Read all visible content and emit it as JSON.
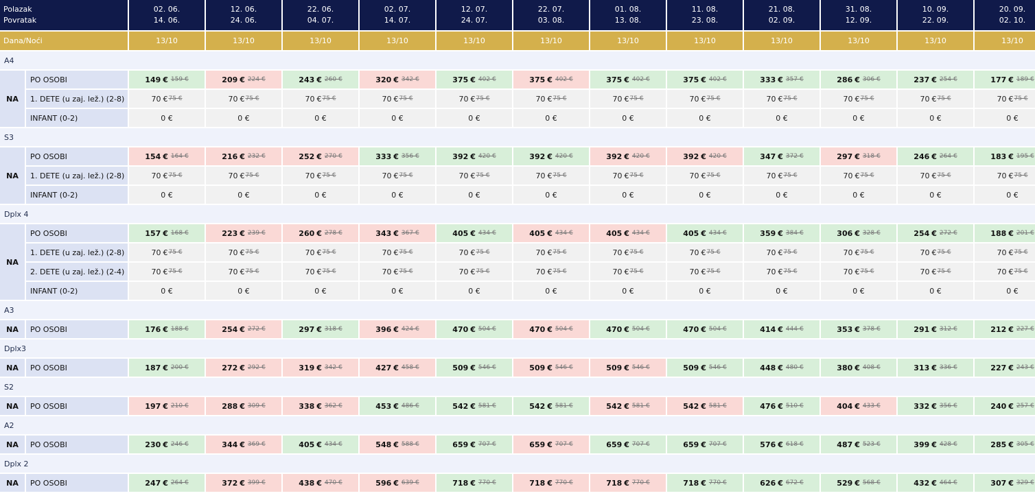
{
  "header": {
    "departure_label": "Polazak",
    "return_label": "Povratak",
    "nights_label": "Dana/Noći",
    "periods": [
      {
        "dep": "02. 06.",
        "ret": "14. 06.",
        "nights": "13/10"
      },
      {
        "dep": "12. 06.",
        "ret": "24. 06.",
        "nights": "13/10"
      },
      {
        "dep": "22. 06.",
        "ret": "04. 07.",
        "nights": "13/10"
      },
      {
        "dep": "02. 07.",
        "ret": "14. 07.",
        "nights": "13/10"
      },
      {
        "dep": "12. 07.",
        "ret": "24. 07.",
        "nights": "13/10"
      },
      {
        "dep": "22. 07.",
        "ret": "03. 08.",
        "nights": "13/10"
      },
      {
        "dep": "01. 08.",
        "ret": "13. 08.",
        "nights": "13/10"
      },
      {
        "dep": "11. 08.",
        "ret": "23. 08.",
        "nights": "13/10"
      },
      {
        "dep": "21. 08.",
        "ret": "02. 09.",
        "nights": "13/10"
      },
      {
        "dep": "31. 08.",
        "ret": "12. 09.",
        "nights": "13/10"
      },
      {
        "dep": "10. 09.",
        "ret": "22. 09.",
        "nights": "13/10"
      },
      {
        "dep": "20. 09.",
        "ret": "02. 10.",
        "nights": "13/10"
      }
    ]
  },
  "colors": {
    "header_bg": "#101a4a",
    "nights_bg": "#d4b04c",
    "price_up": "#d8efd9",
    "price_down": "#fad9d6",
    "label_bg": "#dce2f3"
  },
  "currency": "€",
  "sections": [
    {
      "name": "A4",
      "service": "NA",
      "rows": [
        {
          "label": "PO OSOBI",
          "cells": [
            {
              "p": "149",
              "o": "159 €",
              "c": "green"
            },
            {
              "p": "209",
              "o": "224 €",
              "c": "red"
            },
            {
              "p": "243",
              "o": "260 €",
              "c": "green"
            },
            {
              "p": "320",
              "o": "342 €",
              "c": "red"
            },
            {
              "p": "375",
              "o": "402 €",
              "c": "green"
            },
            {
              "p": "375",
              "o": "402 €",
              "c": "red"
            },
            {
              "p": "375",
              "o": "402 €",
              "c": "green"
            },
            {
              "p": "375",
              "o": "402 €",
              "c": "green"
            },
            {
              "p": "333",
              "o": "357 €",
              "c": "green"
            },
            {
              "p": "286",
              "o": "306 €",
              "c": "green"
            },
            {
              "p": "237",
              "o": "254 €",
              "c": "green"
            },
            {
              "p": "177",
              "o": "189 €",
              "c": "green"
            }
          ]
        },
        {
          "label": "1. DETE (u zaj. lež.) (2-8)",
          "cells": "child"
        },
        {
          "label": "INFANT (0-2)",
          "cells": "infant"
        }
      ]
    },
    {
      "name": "S3",
      "service": "NA",
      "rows": [
        {
          "label": "PO OSOBI",
          "cells": [
            {
              "p": "154",
              "o": "164 €",
              "c": "red"
            },
            {
              "p": "216",
              "o": "232 €",
              "c": "red"
            },
            {
              "p": "252",
              "o": "270 €",
              "c": "red"
            },
            {
              "p": "333",
              "o": "356 €",
              "c": "green"
            },
            {
              "p": "392",
              "o": "420 €",
              "c": "green"
            },
            {
              "p": "392",
              "o": "420 €",
              "c": "green"
            },
            {
              "p": "392",
              "o": "420 €",
              "c": "red"
            },
            {
              "p": "392",
              "o": "420 €",
              "c": "red"
            },
            {
              "p": "347",
              "o": "372 €",
              "c": "green"
            },
            {
              "p": "297",
              "o": "318 €",
              "c": "red"
            },
            {
              "p": "246",
              "o": "264 €",
              "c": "green"
            },
            {
              "p": "183",
              "o": "195 €",
              "c": "green"
            }
          ]
        },
        {
          "label": "1. DETE (u zaj. lež.) (2-8)",
          "cells": "child"
        },
        {
          "label": "INFANT (0-2)",
          "cells": "infant"
        }
      ]
    },
    {
      "name": "Dplx 4",
      "service": "NA",
      "rows": [
        {
          "label": "PO OSOBI",
          "cells": [
            {
              "p": "157",
              "o": "168 €",
              "c": "green"
            },
            {
              "p": "223",
              "o": "239 €",
              "c": "red"
            },
            {
              "p": "260",
              "o": "278 €",
              "c": "red"
            },
            {
              "p": "343",
              "o": "367 €",
              "c": "red"
            },
            {
              "p": "405",
              "o": "434 €",
              "c": "green"
            },
            {
              "p": "405",
              "o": "434 €",
              "c": "red"
            },
            {
              "p": "405",
              "o": "434 €",
              "c": "red"
            },
            {
              "p": "405",
              "o": "434 €",
              "c": "green"
            },
            {
              "p": "359",
              "o": "384 €",
              "c": "green"
            },
            {
              "p": "306",
              "o": "328 €",
              "c": "green"
            },
            {
              "p": "254",
              "o": "272 €",
              "c": "green"
            },
            {
              "p": "188",
              "o": "201 €",
              "c": "green"
            }
          ]
        },
        {
          "label": "1. DETE (u zaj. lež.) (2-8)",
          "cells": "child"
        },
        {
          "label": "2. DETE (u zaj. lež.) (2-4)",
          "cells": "child"
        },
        {
          "label": "INFANT (0-2)",
          "cells": "infant"
        }
      ]
    },
    {
      "name": "A3",
      "service": "NA",
      "rows": [
        {
          "label": "PO OSOBI",
          "cells": [
            {
              "p": "176",
              "o": "188 €",
              "c": "green"
            },
            {
              "p": "254",
              "o": "272 €",
              "c": "red"
            },
            {
              "p": "297",
              "o": "318 €",
              "c": "green"
            },
            {
              "p": "396",
              "o": "424 €",
              "c": "red"
            },
            {
              "p": "470",
              "o": "504 €",
              "c": "green"
            },
            {
              "p": "470",
              "o": "504 €",
              "c": "red"
            },
            {
              "p": "470",
              "o": "504 €",
              "c": "green"
            },
            {
              "p": "470",
              "o": "504 €",
              "c": "green"
            },
            {
              "p": "414",
              "o": "444 €",
              "c": "green"
            },
            {
              "p": "353",
              "o": "378 €",
              "c": "green"
            },
            {
              "p": "291",
              "o": "312 €",
              "c": "green"
            },
            {
              "p": "212",
              "o": "227 €",
              "c": "green"
            }
          ]
        }
      ]
    },
    {
      "name": "Dplx3",
      "service": "NA",
      "rows": [
        {
          "label": "PO OSOBI",
          "cells": [
            {
              "p": "187",
              "o": "200 €",
              "c": "green"
            },
            {
              "p": "272",
              "o": "292 €",
              "c": "red"
            },
            {
              "p": "319",
              "o": "342 €",
              "c": "red"
            },
            {
              "p": "427",
              "o": "458 €",
              "c": "red"
            },
            {
              "p": "509",
              "o": "546 €",
              "c": "green"
            },
            {
              "p": "509",
              "o": "546 €",
              "c": "red"
            },
            {
              "p": "509",
              "o": "546 €",
              "c": "red"
            },
            {
              "p": "509",
              "o": "546 €",
              "c": "green"
            },
            {
              "p": "448",
              "o": "480 €",
              "c": "green"
            },
            {
              "p": "380",
              "o": "408 €",
              "c": "green"
            },
            {
              "p": "313",
              "o": "336 €",
              "c": "green"
            },
            {
              "p": "227",
              "o": "243 €",
              "c": "green"
            }
          ]
        }
      ]
    },
    {
      "name": "S2",
      "service": "NA",
      "rows": [
        {
          "label": "PO OSOBI",
          "cells": [
            {
              "p": "197",
              "o": "210 €",
              "c": "red"
            },
            {
              "p": "288",
              "o": "309 €",
              "c": "red"
            },
            {
              "p": "338",
              "o": "362 €",
              "c": "red"
            },
            {
              "p": "453",
              "o": "486 €",
              "c": "green"
            },
            {
              "p": "542",
              "o": "581 €",
              "c": "green"
            },
            {
              "p": "542",
              "o": "581 €",
              "c": "green"
            },
            {
              "p": "542",
              "o": "581 €",
              "c": "red"
            },
            {
              "p": "542",
              "o": "581 €",
              "c": "red"
            },
            {
              "p": "476",
              "o": "510 €",
              "c": "green"
            },
            {
              "p": "404",
              "o": "433 €",
              "c": "red"
            },
            {
              "p": "332",
              "o": "356 €",
              "c": "green"
            },
            {
              "p": "240",
              "o": "257 €",
              "c": "green"
            }
          ]
        }
      ]
    },
    {
      "name": "A2",
      "service": "NA",
      "rows": [
        {
          "label": "PO OSOBI",
          "cells": [
            {
              "p": "230",
              "o": "246 €",
              "c": "green"
            },
            {
              "p": "344",
              "o": "369 €",
              "c": "red"
            },
            {
              "p": "405",
              "o": "434 €",
              "c": "green"
            },
            {
              "p": "548",
              "o": "588 €",
              "c": "red"
            },
            {
              "p": "659",
              "o": "707 €",
              "c": "green"
            },
            {
              "p": "659",
              "o": "707 €",
              "c": "red"
            },
            {
              "p": "659",
              "o": "707 €",
              "c": "green"
            },
            {
              "p": "659",
              "o": "707 €",
              "c": "green"
            },
            {
              "p": "576",
              "o": "618 €",
              "c": "green"
            },
            {
              "p": "487",
              "o": "523 €",
              "c": "green"
            },
            {
              "p": "399",
              "o": "428 €",
              "c": "green"
            },
            {
              "p": "285",
              "o": "305 €",
              "c": "green"
            }
          ]
        }
      ]
    },
    {
      "name": "Dplx 2",
      "service": "NA",
      "rows": [
        {
          "label": "PO OSOBI",
          "cells": [
            {
              "p": "247",
              "o": "264 €",
              "c": "green"
            },
            {
              "p": "372",
              "o": "399 €",
              "c": "red"
            },
            {
              "p": "438",
              "o": "470 €",
              "c": "red"
            },
            {
              "p": "596",
              "o": "639 €",
              "c": "red"
            },
            {
              "p": "718",
              "o": "770 €",
              "c": "green"
            },
            {
              "p": "718",
              "o": "770 €",
              "c": "red"
            },
            {
              "p": "718",
              "o": "770 €",
              "c": "red"
            },
            {
              "p": "718",
              "o": "770 €",
              "c": "green"
            },
            {
              "p": "626",
              "o": "672 €",
              "c": "green"
            },
            {
              "p": "529",
              "o": "568 €",
              "c": "green"
            },
            {
              "p": "432",
              "o": "464 €",
              "c": "green"
            },
            {
              "p": "307",
              "o": "329 €",
              "c": "green"
            }
          ]
        }
      ]
    }
  ],
  "child_price": {
    "p": "70",
    "o": "75 €"
  },
  "infant_price": "0 €"
}
